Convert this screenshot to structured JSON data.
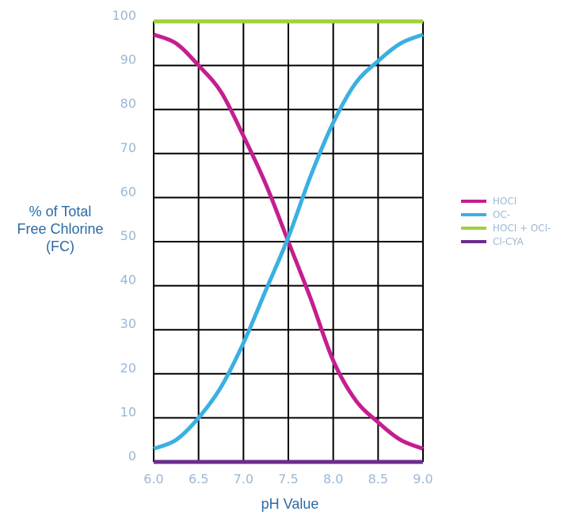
{
  "chart_data": {
    "type": "line",
    "xlabel": "pH Value",
    "ylabel_lines": [
      "% of Total",
      "Free Chlorine",
      "(FC)"
    ],
    "x_ticks": [
      "6.0",
      "6.5",
      "7.0",
      "7.5",
      "8.0",
      "8.5",
      "9.0"
    ],
    "y_ticks": [
      "0",
      "10",
      "20",
      "30",
      "40",
      "50",
      "60",
      "70",
      "80",
      "90",
      "100"
    ],
    "xlim": [
      6.0,
      9.0
    ],
    "ylim": [
      0,
      100
    ],
    "grid": true,
    "legend_position": "right",
    "x": [
      6.0,
      6.25,
      6.5,
      6.75,
      7.0,
      7.25,
      7.5,
      7.75,
      8.0,
      8.25,
      8.5,
      8.75,
      9.0
    ],
    "series": [
      {
        "name": "HOCl",
        "color": "#c41e8f",
        "values": [
          97,
          95,
          90,
          84,
          74,
          63,
          50,
          37,
          23,
          14,
          9,
          5,
          3
        ]
      },
      {
        "name": "OC-",
        "color": "#3ab0e2",
        "values": [
          3,
          5,
          10,
          17,
          27,
          39,
          51,
          65,
          77,
          86,
          91,
          95,
          97
        ]
      },
      {
        "name": "HOCl + OCl-",
        "color": "#9ed23a",
        "values": [
          100,
          100,
          100,
          100,
          100,
          100,
          100,
          100,
          100,
          100,
          100,
          100,
          100
        ]
      },
      {
        "name": "Cl-CYA",
        "color": "#6a2d8c",
        "values": [
          0,
          0,
          0,
          0,
          0,
          0,
          0,
          0,
          0,
          0,
          0,
          0,
          0
        ]
      }
    ]
  }
}
